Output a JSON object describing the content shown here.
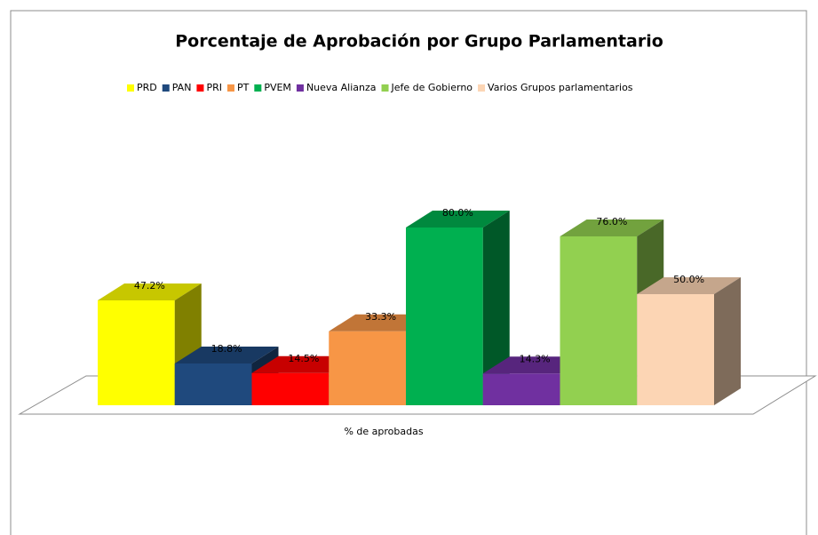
{
  "chart_data": {
    "type": "bar3d",
    "title": "Porcentaje de Aprobación por Grupo Parlamentario",
    "categories": [
      "% de aprobadas"
    ],
    "series": [
      {
        "name": "PRD",
        "color": "#ffff00",
        "values": [
          47.2
        ],
        "value_labels": [
          "47.2%"
        ]
      },
      {
        "name": "PAN",
        "color": "#1f497d",
        "values": [
          18.8
        ],
        "value_labels": [
          "18.8%"
        ]
      },
      {
        "name": "PRI",
        "color": "#ff0000",
        "values": [
          14.5
        ],
        "value_labels": [
          "14.5%"
        ]
      },
      {
        "name": "PT",
        "color": "#f79646",
        "values": [
          33.3
        ],
        "value_labels": [
          "33.3%"
        ]
      },
      {
        "name": "PVEM",
        "color": "#00b050",
        "values": [
          80.0
        ],
        "value_labels": [
          "80.0%"
        ]
      },
      {
        "name": "Nueva Alianza",
        "color": "#7030a0",
        "values": [
          14.3
        ],
        "value_labels": [
          "14.3%"
        ]
      },
      {
        "name": "Jefe de Gobierno",
        "color": "#92d050",
        "values": [
          76.0
        ],
        "value_labels": [
          "76.0%"
        ]
      },
      {
        "name": "Varios Grupos parlamentarios",
        "color": "#fcd5b4",
        "values": [
          50.0
        ],
        "value_labels": [
          "50.0%"
        ]
      }
    ],
    "legend": "top"
  }
}
